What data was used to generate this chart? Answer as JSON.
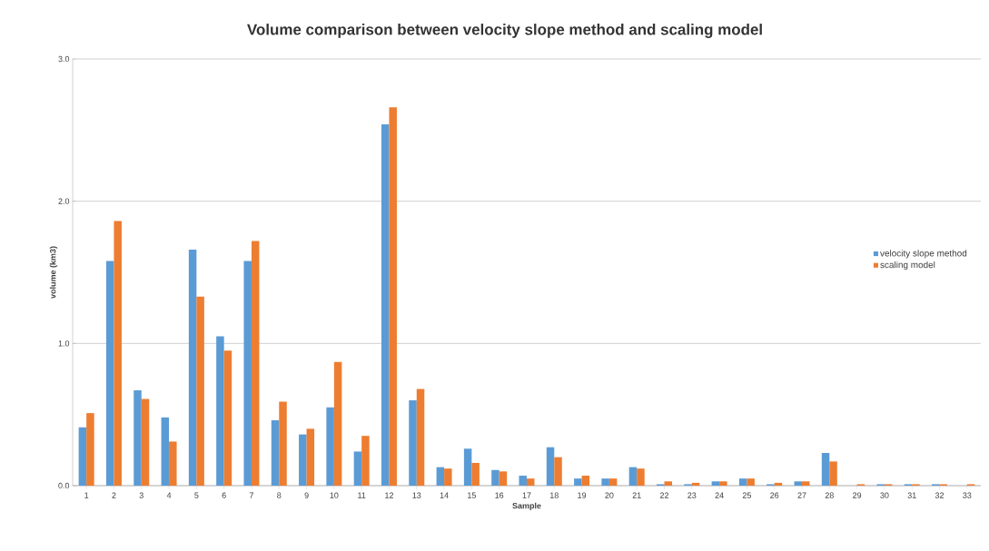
{
  "chart_data": {
    "type": "bar",
    "title": "Volume comparison between velocity slope method and scaling model",
    "xlabel": "Sample",
    "ylabel": "volume (km3)",
    "categories": [
      "1",
      "2",
      "3",
      "4",
      "5",
      "6",
      "7",
      "8",
      "9",
      "10",
      "11",
      "12",
      "13",
      "14",
      "15",
      "16",
      "17",
      "18",
      "19",
      "20",
      "21",
      "22",
      "23",
      "24",
      "25",
      "26",
      "27",
      "28",
      "29",
      "30",
      "31",
      "32",
      "33"
    ],
    "series": [
      {
        "name": "velocity slope method",
        "color": "#5b9bd5",
        "values": [
          0.41,
          1.58,
          0.67,
          0.48,
          1.66,
          1.05,
          1.58,
          0.46,
          0.36,
          0.55,
          0.24,
          2.54,
          0.6,
          0.13,
          0.26,
          0.11,
          0.07,
          0.27,
          0.05,
          0.05,
          0.13,
          0.01,
          0.01,
          0.03,
          0.05,
          0.01,
          0.03,
          0.23,
          0,
          0.01,
          0.01,
          0.01,
          0
        ]
      },
      {
        "name": "scaling model",
        "color": "#ed7d31",
        "values": [
          0.51,
          1.86,
          0.61,
          0.31,
          1.33,
          0.95,
          1.72,
          0.59,
          0.4,
          0.87,
          0.35,
          2.66,
          0.68,
          0.12,
          0.16,
          0.1,
          0.05,
          0.2,
          0.07,
          0.05,
          0.12,
          0.03,
          0.02,
          0.03,
          0.05,
          0.02,
          0.03,
          0.17,
          0.01,
          0.01,
          0.01,
          0.01,
          0.01
        ]
      }
    ],
    "ylim": [
      0,
      3
    ],
    "yticks": [
      {
        "value": 0,
        "label": "0.0"
      },
      {
        "value": 1,
        "label": "1.0"
      },
      {
        "value": 2,
        "label": "2.0"
      },
      {
        "value": 3,
        "label": "3.0"
      }
    ],
    "grid": "y",
    "legend": "right"
  }
}
